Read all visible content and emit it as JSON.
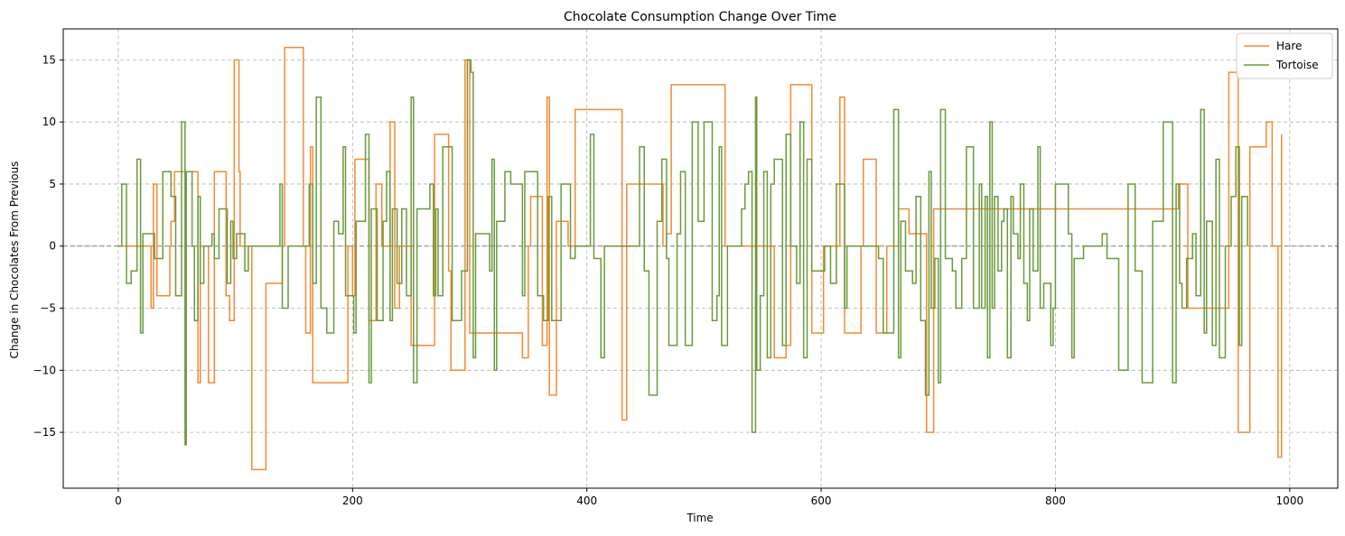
{
  "chart_data": {
    "type": "line",
    "title": "Chocolate Consumption Change Over Time",
    "xlabel": "Time",
    "ylabel": "Change in Chocolates From Previous",
    "xlim": [
      -47,
      1041
    ],
    "ylim": [
      -19.5,
      17.5
    ],
    "x_ticks": [
      0,
      200,
      400,
      600,
      800,
      1000
    ],
    "y_ticks": [
      -15,
      -10,
      -5,
      0,
      5,
      10,
      15
    ],
    "grid": true,
    "grid_style": "dashed",
    "reference_line_y": 0,
    "legend_position": "top-right",
    "step": "post",
    "series": [
      {
        "name": "Hare",
        "color": "#F28A33",
        "points": [
          [
            0,
            0
          ],
          [
            5,
            0
          ],
          [
            12,
            0
          ],
          [
            28,
            -5
          ],
          [
            30,
            5
          ],
          [
            33,
            -4
          ],
          [
            44,
            0
          ],
          [
            45,
            2
          ],
          [
            48,
            6
          ],
          [
            68,
            -11
          ],
          [
            70,
            0
          ],
          [
            77,
            -11
          ],
          [
            82,
            6
          ],
          [
            92,
            -4
          ],
          [
            95,
            -6
          ],
          [
            99,
            15
          ],
          [
            103,
            6
          ],
          [
            104,
            0
          ],
          [
            114,
            -18
          ],
          [
            126,
            -3
          ],
          [
            140,
            0
          ],
          [
            142,
            16
          ],
          [
            158,
            0
          ],
          [
            160,
            -7
          ],
          [
            164,
            8
          ],
          [
            166,
            -11
          ],
          [
            196,
            0
          ],
          [
            200,
            -4
          ],
          [
            202,
            7
          ],
          [
            214,
            -6
          ],
          [
            220,
            5
          ],
          [
            225,
            0
          ],
          [
            227,
            0
          ],
          [
            232,
            10
          ],
          [
            236,
            -5
          ],
          [
            240,
            0
          ],
          [
            250,
            -8
          ],
          [
            270,
            9
          ],
          [
            282,
            -2
          ],
          [
            284,
            -10
          ],
          [
            296,
            15
          ],
          [
            300,
            -7
          ],
          [
            345,
            -9
          ],
          [
            350,
            0
          ],
          [
            352,
            4
          ],
          [
            362,
            -8
          ],
          [
            366,
            12
          ],
          [
            368,
            -12
          ],
          [
            374,
            2
          ],
          [
            384,
            0
          ],
          [
            390,
            11
          ],
          [
            430,
            -14
          ],
          [
            434,
            5
          ],
          [
            460,
            5
          ],
          [
            465,
            0
          ],
          [
            468,
            1
          ],
          [
            472,
            13
          ],
          [
            518,
            0
          ],
          [
            530,
            0
          ],
          [
            560,
            -9
          ],
          [
            570,
            -8
          ],
          [
            574,
            13
          ],
          [
            592,
            -7
          ],
          [
            602,
            0
          ],
          [
            612,
            0
          ],
          [
            616,
            12
          ],
          [
            620,
            -7
          ],
          [
            634,
            0
          ],
          [
            636,
            7
          ],
          [
            647,
            -7
          ],
          [
            656,
            0
          ],
          [
            666,
            3
          ],
          [
            675,
            1
          ],
          [
            682,
            1
          ],
          [
            690,
            -15
          ],
          [
            696,
            3
          ],
          [
            760,
            3
          ],
          [
            840,
            3
          ],
          [
            900,
            3
          ],
          [
            905,
            5
          ],
          [
            913,
            -5
          ],
          [
            945,
            -5
          ],
          [
            948,
            14
          ],
          [
            956,
            -15
          ],
          [
            966,
            8
          ],
          [
            980,
            10
          ],
          [
            985,
            0
          ],
          [
            990,
            -17
          ],
          [
            993,
            9
          ]
        ]
      },
      {
        "name": "Tortoise",
        "color": "#6A9A3B",
        "points": [
          [
            0,
            0
          ],
          [
            3,
            5
          ],
          [
            7,
            -3
          ],
          [
            11,
            -2
          ],
          [
            16,
            7
          ],
          [
            19,
            -7
          ],
          [
            21,
            1
          ],
          [
            31,
            -1
          ],
          [
            38,
            6
          ],
          [
            45,
            4
          ],
          [
            49,
            -4
          ],
          [
            54,
            10
          ],
          [
            57,
            -16
          ],
          [
            58,
            6
          ],
          [
            63,
            0
          ],
          [
            65,
            -6
          ],
          [
            68,
            4
          ],
          [
            70,
            -3
          ],
          [
            73,
            0
          ],
          [
            80,
            1
          ],
          [
            82,
            -1
          ],
          [
            86,
            3
          ],
          [
            93,
            -3
          ],
          [
            96,
            2
          ],
          [
            98,
            -1
          ],
          [
            101,
            1
          ],
          [
            108,
            -2
          ],
          [
            111,
            0
          ],
          [
            138,
            5
          ],
          [
            140,
            -5
          ],
          [
            145,
            0
          ],
          [
            160,
            0
          ],
          [
            163,
            5
          ],
          [
            166,
            -3
          ],
          [
            169,
            12
          ],
          [
            173,
            -5
          ],
          [
            178,
            -7
          ],
          [
            184,
            2
          ],
          [
            188,
            1
          ],
          [
            192,
            8
          ],
          [
            194,
            -4
          ],
          [
            201,
            -7
          ],
          [
            203,
            2
          ],
          [
            211,
            9
          ],
          [
            214,
            -11
          ],
          [
            216,
            3
          ],
          [
            221,
            -6
          ],
          [
            226,
            2
          ],
          [
            229,
            6
          ],
          [
            232,
            -6
          ],
          [
            234,
            3
          ],
          [
            238,
            -3
          ],
          [
            242,
            3
          ],
          [
            246,
            -4
          ],
          [
            250,
            12
          ],
          [
            252,
            -11
          ],
          [
            255,
            3
          ],
          [
            266,
            5
          ],
          [
            269,
            -4
          ],
          [
            271,
            3
          ],
          [
            273,
            -4
          ],
          [
            277,
            8
          ],
          [
            285,
            -6
          ],
          [
            293,
            -2
          ],
          [
            298,
            15
          ],
          [
            301,
            14
          ],
          [
            303,
            -9
          ],
          [
            305,
            1
          ],
          [
            317,
            -2
          ],
          [
            319,
            7
          ],
          [
            321,
            -10
          ],
          [
            323,
            2
          ],
          [
            330,
            6
          ],
          [
            335,
            5
          ],
          [
            345,
            -4
          ],
          [
            347,
            6
          ],
          [
            358,
            -4
          ],
          [
            363,
            -6
          ],
          [
            367,
            4
          ],
          [
            370,
            -6
          ],
          [
            378,
            5
          ],
          [
            386,
            -1
          ],
          [
            390,
            0
          ],
          [
            403,
            9
          ],
          [
            406,
            -1
          ],
          [
            412,
            -9
          ],
          [
            415,
            0
          ],
          [
            427,
            0
          ],
          [
            440,
            0
          ],
          [
            445,
            8
          ],
          [
            449,
            -2
          ],
          [
            453,
            -12
          ],
          [
            460,
            2
          ],
          [
            464,
            7
          ],
          [
            468,
            -1
          ],
          [
            470,
            -8
          ],
          [
            477,
            1
          ],
          [
            480,
            6
          ],
          [
            484,
            -8
          ],
          [
            490,
            10
          ],
          [
            495,
            2
          ],
          [
            500,
            10
          ],
          [
            507,
            -6
          ],
          [
            511,
            -4
          ],
          [
            513,
            8
          ],
          [
            515,
            -8
          ],
          [
            520,
            0
          ],
          [
            530,
            0
          ],
          [
            532,
            3
          ],
          [
            535,
            5
          ],
          [
            538,
            6
          ],
          [
            541,
            -15
          ],
          [
            544,
            12
          ],
          [
            545,
            -10
          ],
          [
            548,
            -4
          ],
          [
            551,
            6
          ],
          [
            554,
            -9
          ],
          [
            557,
            5
          ],
          [
            560,
            7
          ],
          [
            567,
            -8
          ],
          [
            570,
            9
          ],
          [
            574,
            0
          ],
          [
            579,
            -3
          ],
          [
            582,
            10
          ],
          [
            585,
            -9
          ],
          [
            588,
            7
          ],
          [
            592,
            -2
          ],
          [
            603,
            0
          ],
          [
            608,
            -3
          ],
          [
            613,
            5
          ],
          [
            620,
            -5
          ],
          [
            622,
            0
          ],
          [
            640,
            0
          ],
          [
            649,
            -1
          ],
          [
            653,
            -7
          ],
          [
            662,
            11
          ],
          [
            666,
            -9
          ],
          [
            668,
            2
          ],
          [
            672,
            -2
          ],
          [
            678,
            -3
          ],
          [
            681,
            4
          ],
          [
            685,
            -6
          ],
          [
            689,
            -12
          ],
          [
            692,
            6
          ],
          [
            694,
            -5
          ],
          [
            697,
            -1
          ],
          [
            700,
            -11
          ],
          [
            702,
            11
          ],
          [
            706,
            -1
          ],
          [
            712,
            -2
          ],
          [
            715,
            -5
          ],
          [
            720,
            -1
          ],
          [
            724,
            8
          ],
          [
            730,
            -5
          ],
          [
            735,
            5
          ],
          [
            737,
            -5
          ],
          [
            740,
            4
          ],
          [
            742,
            -9
          ],
          [
            744,
            10
          ],
          [
            746,
            -5
          ],
          [
            748,
            4
          ],
          [
            751,
            -2
          ],
          [
            754,
            2
          ],
          [
            756,
            3
          ],
          [
            759,
            -9
          ],
          [
            762,
            4
          ],
          [
            764,
            1
          ],
          [
            768,
            -1
          ],
          [
            770,
            5
          ],
          [
            773,
            -3
          ],
          [
            776,
            -6
          ],
          [
            778,
            3
          ],
          [
            781,
            -2
          ],
          [
            785,
            8
          ],
          [
            787,
            -5
          ],
          [
            790,
            -3
          ],
          [
            796,
            -8
          ],
          [
            798,
            -5
          ],
          [
            800,
            5
          ],
          [
            811,
            1
          ],
          [
            814,
            -9
          ],
          [
            816,
            -1
          ],
          [
            824,
            0
          ],
          [
            835,
            0
          ],
          [
            840,
            1
          ],
          [
            844,
            -1
          ],
          [
            847,
            -1
          ],
          [
            850,
            -1
          ],
          [
            854,
            -10
          ],
          [
            862,
            5
          ],
          [
            868,
            -2
          ],
          [
            874,
            -11
          ],
          [
            883,
            2
          ],
          [
            892,
            10
          ],
          [
            900,
            -11
          ],
          [
            903,
            5
          ],
          [
            906,
            -3
          ],
          [
            908,
            -5
          ],
          [
            912,
            -1
          ],
          [
            917,
            1
          ],
          [
            920,
            -4
          ],
          [
            924,
            11
          ],
          [
            927,
            -7
          ],
          [
            929,
            2
          ],
          [
            934,
            -8
          ],
          [
            937,
            7
          ],
          [
            940,
            -9
          ],
          [
            945,
            0
          ],
          [
            950,
            4
          ],
          [
            954,
            8
          ],
          [
            957,
            -8
          ],
          [
            959,
            4
          ],
          [
            964,
            0
          ]
        ]
      }
    ]
  }
}
